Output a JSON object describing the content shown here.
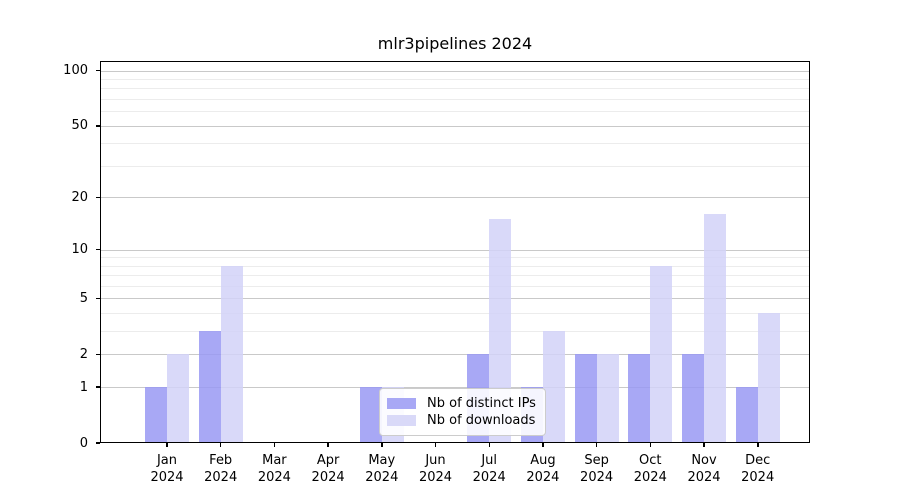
{
  "chart_data": {
    "type": "bar",
    "title": "mlr3pipelines 2024",
    "categories": [
      "Jan",
      "Feb",
      "Mar",
      "Apr",
      "May",
      "Jun",
      "Jul",
      "Aug",
      "Sep",
      "Oct",
      "Nov",
      "Dec"
    ],
    "x_label_line2": "2024",
    "series": [
      {
        "name": "Nb of distinct IPs",
        "color": "rgba(153,153,243,0.85)",
        "legend_color": "#a8a8f5",
        "values": [
          1,
          3,
          0,
          0,
          1,
          0,
          2,
          1,
          2,
          2,
          2,
          1
        ]
      },
      {
        "name": "Nb of downloads",
        "color": "rgba(210,210,248,0.85)",
        "legend_color": "#d9d9f8",
        "values": [
          2,
          8,
          0,
          0,
          1,
          0,
          15,
          3,
          2,
          8,
          16,
          4
        ]
      }
    ],
    "y_axis": {
      "scale": "log1p",
      "major_ticks": [
        0,
        1,
        2,
        5,
        10,
        20,
        50,
        100
      ],
      "minor_ticks": [
        3,
        4,
        6,
        7,
        8,
        9,
        30,
        40,
        60,
        70,
        80,
        90
      ],
      "max_value": 110
    },
    "legend_entries": [
      "Nb of distinct IPs",
      "Nb of downloads"
    ],
    "grid": true,
    "legend_position": "lower center"
  }
}
